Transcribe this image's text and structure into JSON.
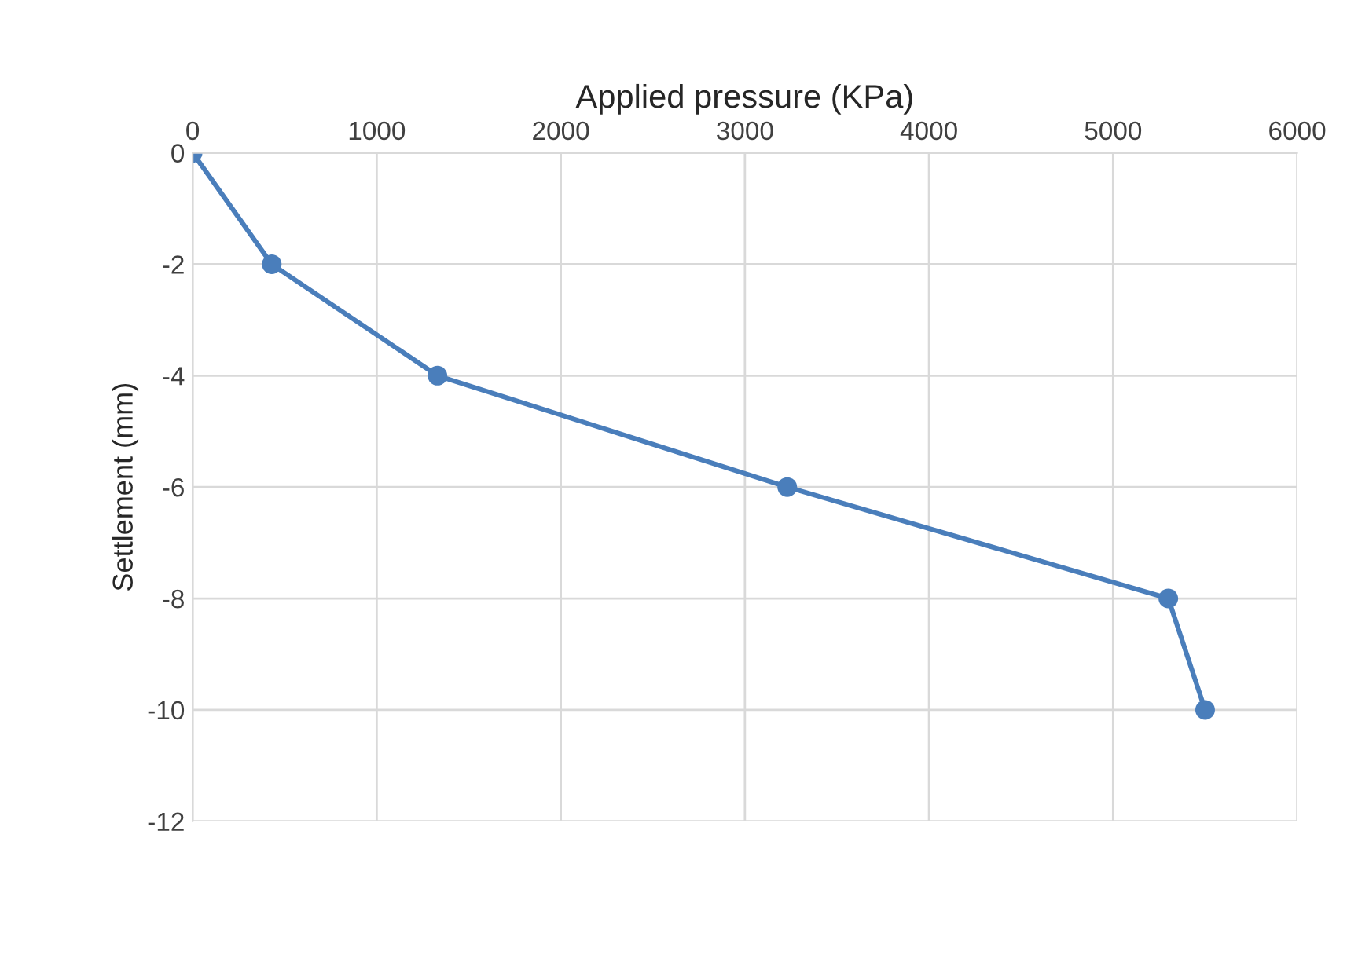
{
  "chart_data": {
    "type": "line",
    "xlabel": "Applied pressure (KPa)",
    "ylabel": "Settlement (mm)",
    "x": [
      0,
      430,
      1330,
      3230,
      5300,
      5500
    ],
    "series": [
      {
        "color": "#4a7ebb",
        "values": [
          0,
          -2,
          -4,
          -6,
          -8,
          -10
        ]
      }
    ],
    "xlim": [
      0,
      6000
    ],
    "xticks": [
      0,
      1000,
      2000,
      3000,
      4000,
      5000,
      6000
    ],
    "ylim": [
      -12,
      0
    ],
    "yticks": [
      -12,
      -10,
      -8,
      -6,
      -4,
      -2,
      0
    ],
    "grid": true,
    "marker": "circle",
    "line_style": "solid"
  }
}
